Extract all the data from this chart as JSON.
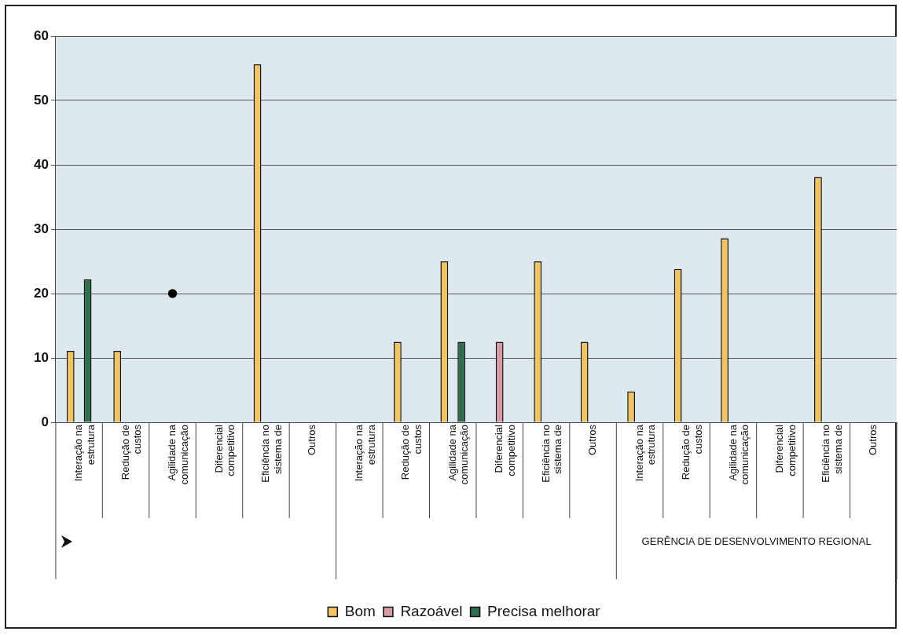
{
  "chart_data": {
    "type": "bar",
    "categories": [
      "Interação na estrutura",
      "Redução de custos",
      "Agilidade na comunicação",
      "Diferencial competitivo",
      "Eficiência no sistema de",
      "Outros",
      "Interação na estrutura",
      "Redução de custos",
      "Agilidade na comunicação",
      "Diferencial competitivo",
      "Eficiência no sistema de",
      "Outros",
      "Interação na estrutura",
      "Redução de custos",
      "Agilidade na comunicação",
      "Diferencial competitivo",
      "Eficiência no sistema de",
      "Outros"
    ],
    "series": [
      {
        "name": "Bom",
        "color": "#f3c45e",
        "values": [
          11.1,
          11.1,
          null,
          null,
          55.6,
          null,
          null,
          12.5,
          25,
          null,
          25,
          12.5,
          4.8,
          23.8,
          28.6,
          null,
          38.1,
          null
        ]
      },
      {
        "name": "Razoável",
        "color": "#d99aa6",
        "values": [
          null,
          null,
          null,
          null,
          null,
          null,
          null,
          null,
          null,
          12.5,
          null,
          null,
          null,
          null,
          null,
          null,
          null,
          null
        ]
      },
      {
        "name": "Precisa melhorar",
        "color": "#2e6e4e",
        "values": [
          22.2,
          null,
          null,
          null,
          null,
          null,
          null,
          null,
          12.5,
          null,
          null,
          null,
          null,
          null,
          null,
          null,
          null,
          null
        ]
      },
      {
        "type": "scatter",
        "color": "#000000",
        "values": [
          null,
          null,
          20,
          null,
          null,
          null,
          null,
          null,
          null,
          null,
          null,
          null,
          null,
          null,
          null,
          null,
          null,
          null
        ]
      }
    ],
    "ylim": [
      0,
      60
    ],
    "yticks": [
      0,
      10,
      20,
      30,
      40,
      50,
      60
    ],
    "grid": "y",
    "legend": "bottom",
    "marker": "circle",
    "annotations": [
      "GERÊNCIA DE DESENVOLVIMENTO REGIONAL"
    ]
  }
}
